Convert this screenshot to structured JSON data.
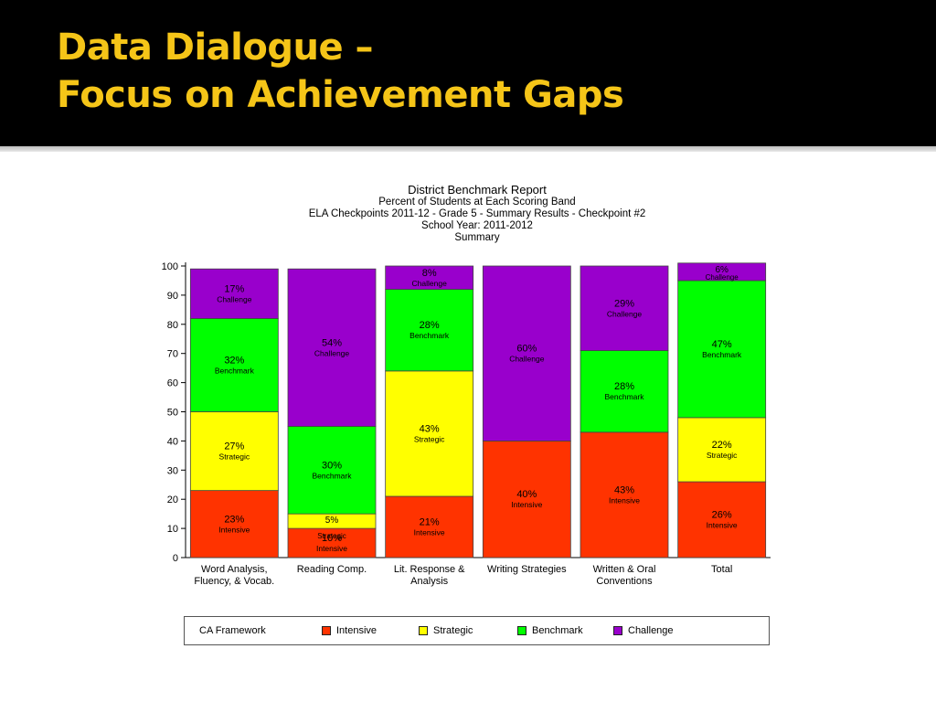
{
  "slide": {
    "title_line1": "Data Dialogue –",
    "title_line2": "Focus on Achievement Gaps"
  },
  "report": {
    "title": "District Benchmark Report",
    "subtitle1": "Percent of Students at Each Scoring Band",
    "subtitle2": "ELA Checkpoints 2011-12 - Grade 5 - Summary Results - Checkpoint #2",
    "subtitle3": "School Year: 2011-2012",
    "subtitle4": "Summary"
  },
  "legend": {
    "caption": "CA Framework",
    "items": [
      "Intensive",
      "Strategic",
      "Benchmark",
      "Challenge"
    ]
  },
  "colors": {
    "Intensive": "#ff3300",
    "Strategic": "#ffff00",
    "Benchmark": "#00ff00",
    "Challenge": "#9900cc"
  },
  "chart_data": {
    "type": "bar",
    "stacked": true,
    "title": "District Benchmark Report",
    "categories": [
      "Word Analysis,\nFluency, & Vocab.",
      "Reading Comp.",
      "Lit. Response &\nAnalysis",
      "Writing Strategies",
      "Written & Oral\nConventions",
      "Total"
    ],
    "series": [
      {
        "name": "Intensive",
        "values": [
          23,
          10,
          21,
          40,
          43,
          26
        ]
      },
      {
        "name": "Strategic",
        "values": [
          27,
          5,
          43,
          0,
          0,
          22
        ]
      },
      {
        "name": "Benchmark",
        "values": [
          32,
          30,
          28,
          0,
          28,
          47
        ]
      },
      {
        "name": "Challenge",
        "values": [
          17,
          54,
          8,
          60,
          29,
          6
        ]
      }
    ],
    "ylim": [
      0,
      100
    ],
    "yticks": [
      0,
      10,
      20,
      30,
      40,
      50,
      60,
      70,
      80,
      90,
      100
    ],
    "legend_position": "bottom"
  }
}
